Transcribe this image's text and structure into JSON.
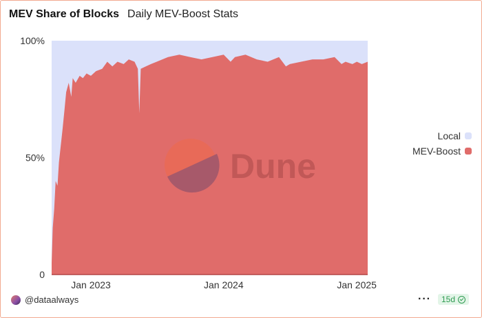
{
  "header": {
    "title": "MEV Share of Blocks",
    "subtitle": "Daily MEV-Boost Stats"
  },
  "watermark": {
    "text": "Dune"
  },
  "footer": {
    "author": "@dataalways",
    "more_label": "···",
    "age_badge": "15d"
  },
  "colors": {
    "local": "#dbe1fa",
    "mev_boost": "#e06c6a",
    "baseline": "#b44444",
    "badge_green": "#2f9a51"
  },
  "chart_data": {
    "type": "area",
    "stacked": true,
    "normalized": true,
    "title": "MEV Share of Blocks",
    "subtitle": "Daily MEV-Boost Stats",
    "x_range": [
      "2022-09-15",
      "2025-01-31"
    ],
    "x_ticks": [
      {
        "date": "2023-01-01",
        "label": "Jan 2023"
      },
      {
        "date": "2024-01-01",
        "label": "Jan 2024"
      },
      {
        "date": "2025-01-01",
        "label": "Jan 2025"
      }
    ],
    "y_ticks": [
      {
        "value": 0,
        "label": "0"
      },
      {
        "value": 50,
        "label": "50%"
      },
      {
        "value": 100,
        "label": "100%"
      }
    ],
    "ylim": [
      0,
      100
    ],
    "legend": {
      "position": "right",
      "entries": [
        "Local",
        "MEV-Boost"
      ]
    },
    "series": [
      {
        "name": "MEV-Boost",
        "points": [
          [
            "2022-09-15",
            5
          ],
          [
            "2022-09-18",
            20
          ],
          [
            "2022-09-22",
            28
          ],
          [
            "2022-09-26",
            40
          ],
          [
            "2022-10-01",
            38
          ],
          [
            "2022-10-05",
            48
          ],
          [
            "2022-10-10",
            55
          ],
          [
            "2022-10-15",
            62
          ],
          [
            "2022-10-20",
            70
          ],
          [
            "2022-10-25",
            78
          ],
          [
            "2022-11-01",
            82
          ],
          [
            "2022-11-08",
            76
          ],
          [
            "2022-11-12",
            84
          ],
          [
            "2022-11-20",
            82
          ],
          [
            "2022-12-01",
            85
          ],
          [
            "2022-12-10",
            84
          ],
          [
            "2022-12-20",
            86
          ],
          [
            "2023-01-01",
            85
          ],
          [
            "2023-01-15",
            87
          ],
          [
            "2023-02-01",
            88
          ],
          [
            "2023-02-15",
            91
          ],
          [
            "2023-03-01",
            89
          ],
          [
            "2023-03-15",
            91
          ],
          [
            "2023-04-01",
            90
          ],
          [
            "2023-04-15",
            92
          ],
          [
            "2023-05-01",
            91
          ],
          [
            "2023-05-10",
            88
          ],
          [
            "2023-05-14",
            69
          ],
          [
            "2023-05-18",
            88
          ],
          [
            "2023-06-01",
            89
          ],
          [
            "2023-06-15",
            90
          ],
          [
            "2023-07-01",
            91
          ],
          [
            "2023-08-01",
            93
          ],
          [
            "2023-09-01",
            94
          ],
          [
            "2023-10-01",
            93
          ],
          [
            "2023-11-01",
            92
          ],
          [
            "2023-12-01",
            93
          ],
          [
            "2024-01-01",
            94
          ],
          [
            "2024-01-20",
            91
          ],
          [
            "2024-02-01",
            93
          ],
          [
            "2024-03-01",
            94
          ],
          [
            "2024-04-01",
            92
          ],
          [
            "2024-05-01",
            91
          ],
          [
            "2024-06-01",
            93
          ],
          [
            "2024-06-20",
            89
          ],
          [
            "2024-07-01",
            90
          ],
          [
            "2024-08-01",
            91
          ],
          [
            "2024-09-01",
            92
          ],
          [
            "2024-10-01",
            92
          ],
          [
            "2024-11-01",
            93
          ],
          [
            "2024-11-20",
            90
          ],
          [
            "2024-12-01",
            91
          ],
          [
            "2024-12-20",
            90
          ],
          [
            "2025-01-01",
            91
          ],
          [
            "2025-01-15",
            90
          ],
          [
            "2025-01-31",
            91
          ]
        ]
      },
      {
        "name": "Local",
        "note": "remainder to 100%"
      }
    ]
  }
}
